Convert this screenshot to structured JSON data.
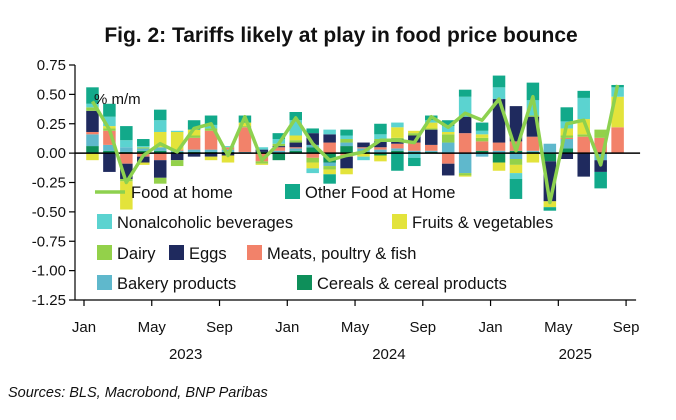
{
  "chart_data": {
    "type": "bar",
    "title": "Fig. 2: Tariffs likely at play in food price bounce",
    "unit_label": "% m/m",
    "source": "Sources: BLS, Macrobond, BNP Paribas",
    "ylim": [
      -1.25,
      0.75
    ],
    "yticks": [
      "0.75",
      "0.50",
      "0.25",
      "0.00",
      "-0.25",
      "-0.50",
      "-0.75",
      "-1.00",
      "-1.25"
    ],
    "ytick_values": [
      0.75,
      0.5,
      0.25,
      0,
      -0.25,
      -0.5,
      -0.75,
      -1.0,
      -1.25
    ],
    "xticks": [
      {
        "label": "Jan",
        "month": 0
      },
      {
        "label": "May",
        "month": 4
      },
      {
        "label": "Sep",
        "month": 8
      },
      {
        "label": "Jan",
        "month": 12
      },
      {
        "label": "May",
        "month": 16
      },
      {
        "label": "Sep",
        "month": 20
      },
      {
        "label": "Jan",
        "month": 24
      },
      {
        "label": "May",
        "month": 28
      },
      {
        "label": "Sep",
        "month": 32
      }
    ],
    "years": [
      {
        "label": "2023",
        "month": 6
      },
      {
        "label": "2024",
        "month": 18
      },
      {
        "label": "2025",
        "month": 29
      }
    ],
    "categories": [
      "Jan 2023",
      "Feb 2023",
      "Mar 2023",
      "Apr 2023",
      "May 2023",
      "Jun 2023",
      "Jul 2023",
      "Aug 2023",
      "Sep 2023",
      "Oct 2023",
      "Nov 2023",
      "Dec 2023",
      "Jan 2024",
      "Feb 2024",
      "Mar 2024",
      "Apr 2024",
      "May 2024",
      "Jun 2024",
      "Jul 2024",
      "Aug 2024",
      "Sep 2024",
      "Oct 2024",
      "Nov 2024",
      "Dec 2024",
      "Jan 2025",
      "Feb 2025",
      "Mar 2025",
      "Apr 2025",
      "May 2025",
      "Jun 2025",
      "Jul 2025",
      "Aug 2025"
    ],
    "series": [
      {
        "name": "Cereals & cereal products",
        "color": "#0E8F5A",
        "values": [
          0.06,
          0.02,
          0.01,
          0.02,
          0.02,
          0.01,
          0.01,
          0.01,
          0.01,
          0.0,
          0.01,
          -0.06,
          0.02,
          0.05,
          -0.08,
          0.06,
          0.01,
          -0.02,
          0.02,
          0.01,
          0.01,
          0.0,
          0.0,
          0.02,
          -0.08,
          0.02,
          0.01,
          -0.07,
          0.04,
          0.0,
          0.0,
          0.0
        ]
      },
      {
        "name": "Bakery products",
        "color": "#5FB8CC",
        "values": [
          0.1,
          0.05,
          0.04,
          0.02,
          0.03,
          0.01,
          0.02,
          0.02,
          0.02,
          0.01,
          0.0,
          0.02,
          0.02,
          0.02,
          -0.03,
          0.03,
          0.03,
          0.03,
          0.02,
          0.01,
          0.01,
          0.09,
          -0.17,
          -0.03,
          0.02,
          -0.05,
          0.01,
          0.08,
          0.08,
          0.0,
          -0.06,
          0.0
        ]
      },
      {
        "name": "Meats, poultry & fish",
        "color": "#F2826A",
        "values": [
          0.02,
          0.12,
          -0.09,
          -0.03,
          -0.06,
          0.01,
          0.1,
          0.16,
          0.02,
          0.21,
          -0.07,
          0.03,
          0.01,
          -0.04,
          0.09,
          -0.03,
          0.01,
          0.02,
          0.04,
          0.07,
          0.05,
          -0.09,
          0.17,
          0.08,
          0.07,
          0.08,
          0.12,
          0.0,
          0.01,
          0.14,
          0.13,
          0.22
        ]
      },
      {
        "name": "Eggs",
        "color": "#1F2A5E",
        "values": [
          0.18,
          -0.16,
          -0.13,
          -0.05,
          -0.15,
          -0.06,
          -0.03,
          -0.03,
          -0.02,
          0.0,
          0.02,
          0.01,
          0.04,
          0.1,
          0.07,
          -0.1,
          0.04,
          0.05,
          0.04,
          0.06,
          0.13,
          -0.1,
          0.14,
          0.0,
          0.37,
          0.3,
          0.17,
          -0.34,
          -0.05,
          -0.2,
          -0.1,
          0.0
        ]
      },
      {
        "name": "Dairy",
        "color": "#93D14A",
        "values": [
          0.03,
          0.02,
          -0.02,
          0.01,
          -0.05,
          -0.05,
          0.02,
          0.02,
          0.0,
          0.01,
          -0.02,
          0.02,
          0.02,
          -0.04,
          -0.03,
          0.03,
          0.0,
          0.02,
          0.01,
          0.02,
          0.01,
          0.07,
          -0.02,
          0.03,
          0.0,
          -0.05,
          0.01,
          0.0,
          0.02,
          0.02,
          0.07,
          0.0
        ]
      },
      {
        "name": "Fruits & vegetables",
        "color": "#E3E33B",
        "values": [
          -0.06,
          0.02,
          -0.24,
          -0.02,
          0.13,
          0.15,
          0.05,
          -0.03,
          -0.06,
          0.03,
          -0.01,
          0.0,
          0.04,
          -0.05,
          -0.04,
          -0.05,
          -0.03,
          -0.05,
          0.09,
          0.02,
          0.05,
          0.02,
          -0.01,
          0.03,
          -0.07,
          -0.07,
          -0.08,
          -0.05,
          0.06,
          0.13,
          0.0,
          0.26
        ]
      },
      {
        "name": "Nonalcoholic beverages",
        "color": "#5BD3D0",
        "values": [
          0.03,
          0.08,
          0.06,
          0.01,
          0.1,
          0.01,
          0.0,
          0.03,
          0.01,
          0.0,
          0.02,
          0.04,
          0.13,
          -0.04,
          0.04,
          0.03,
          -0.03,
          0.04,
          0.04,
          -0.04,
          0.02,
          0.05,
          0.17,
          0.03,
          0.1,
          -0.05,
          0.13,
          0.0,
          0.06,
          0.18,
          0.0,
          0.08
        ]
      },
      {
        "name": "Other Food at Home",
        "color": "#12A98A",
        "values": [
          0.14,
          0.11,
          0.12,
          0.06,
          0.09,
          0.0,
          0.08,
          0.08,
          0.0,
          0.06,
          0.0,
          0.05,
          0.07,
          0.04,
          -0.08,
          0.05,
          0.0,
          0.09,
          -0.15,
          -0.07,
          0.04,
          0.05,
          0.06,
          0.07,
          0.1,
          -0.17,
          0.15,
          -0.03,
          0.12,
          0.06,
          -0.14,
          0.02
        ]
      }
    ],
    "line": {
      "name": "Food at home",
      "color": "#8DD14F",
      "values": [
        0.44,
        0.2,
        -0.25,
        -0.02,
        0.08,
        0.01,
        0.21,
        0.25,
        -0.02,
        0.31,
        -0.06,
        0.08,
        0.3,
        0.08,
        -0.06,
        -0.02,
        0.01,
        0.11,
        0.11,
        0.09,
        0.31,
        0.22,
        0.34,
        0.28,
        0.46,
        0.02,
        0.48,
        -0.42,
        0.25,
        0.28,
        -0.1,
        0.58
      ]
    },
    "legend": {
      "placement": "bottom-left",
      "rows": [
        [
          "Food at home",
          "Other Food at Home"
        ],
        [
          "Nonalcoholic beverages",
          "Fruits & vegetables"
        ],
        [
          "Dairy",
          "Eggs",
          "Meats, poultry & fish"
        ],
        [
          "Bakery products",
          "Cereals & cereal products"
        ]
      ]
    }
  }
}
